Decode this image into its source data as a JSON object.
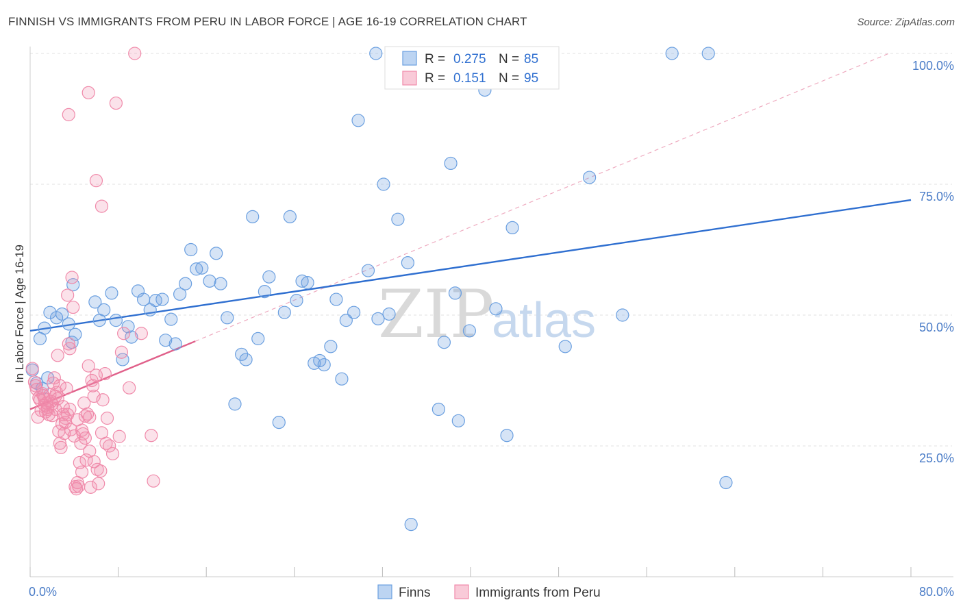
{
  "title": "FINNISH VS IMMIGRANTS FROM PERU IN LABOR FORCE | AGE 16-19 CORRELATION CHART",
  "source": "Source: ZipAtlas.com",
  "watermark": {
    "zip": "ZIP",
    "atlas": "atlas"
  },
  "colors": {
    "finns": "#6a9fe0",
    "finns_line": "#2f6fd0",
    "peru": "#f08aaa",
    "peru_line": "#e0608a",
    "accent_text": "#4a7cc7"
  },
  "legend_top": [
    {
      "r_label": "R =",
      "r_value": "0.275",
      "n_label": "N =",
      "n_value": "85"
    },
    {
      "r_label": "R =",
      "r_value": "0.151",
      "n_label": "N =",
      "n_value": "95"
    }
  ],
  "legend_bottom": [
    "Finns",
    "Immigrants from Peru"
  ],
  "chart_data": {
    "type": "scatter",
    "xlabel": "",
    "ylabel": "In Labor Force | Age 16-19",
    "xlim": [
      0,
      80
    ],
    "ylim": [
      0,
      100
    ],
    "x_tick_labels": [
      "0.0%",
      "80.0%"
    ],
    "y_ticks": [
      25,
      50,
      75,
      100
    ],
    "y_tick_labels": [
      "25.0%",
      "50.0%",
      "75.0%",
      "100.0%"
    ],
    "grid": true,
    "legend_placement": "top-center",
    "series": [
      {
        "name": "Finns",
        "R": 0.275,
        "N": 85,
        "trend": {
          "x0": 0,
          "y0": 47.0,
          "x1": 80,
          "y1": 72.0
        },
        "points": [
          [
            0.2,
            39.5
          ],
          [
            0.9,
            45.5
          ],
          [
            1.3,
            47.5
          ],
          [
            1.8,
            50.5
          ],
          [
            2.4,
            49.5
          ],
          [
            2.9,
            50.2
          ],
          [
            3.5,
            48.3
          ],
          [
            3.8,
            44.8
          ],
          [
            4.1,
            46.3
          ],
          [
            3.9,
            55.8
          ],
          [
            5.9,
            52.5
          ],
          [
            6.3,
            49.0
          ],
          [
            6.7,
            51.0
          ],
          [
            7.4,
            54.2
          ],
          [
            7.8,
            49.0
          ],
          [
            8.4,
            41.5
          ],
          [
            8.9,
            47.8
          ],
          [
            9.2,
            45.8
          ],
          [
            9.8,
            54.6
          ],
          [
            10.3,
            53.0
          ],
          [
            10.9,
            51.0
          ],
          [
            11.4,
            52.8
          ],
          [
            12.0,
            53.0
          ],
          [
            12.3,
            45.2
          ],
          [
            12.8,
            49.2
          ],
          [
            13.2,
            44.5
          ],
          [
            13.6,
            54.0
          ],
          [
            14.1,
            56.0
          ],
          [
            14.6,
            62.5
          ],
          [
            15.1,
            58.8
          ],
          [
            15.6,
            59.0
          ],
          [
            16.3,
            56.5
          ],
          [
            16.9,
            61.8
          ],
          [
            17.3,
            56.0
          ],
          [
            17.9,
            49.5
          ],
          [
            18.6,
            33.0
          ],
          [
            19.2,
            42.5
          ],
          [
            19.6,
            41.5
          ],
          [
            20.2,
            68.8
          ],
          [
            20.7,
            45.5
          ],
          [
            21.3,
            54.5
          ],
          [
            21.7,
            57.3
          ],
          [
            22.6,
            29.5
          ],
          [
            23.1,
            50.5
          ],
          [
            23.6,
            68.8
          ],
          [
            24.2,
            52.8
          ],
          [
            24.7,
            56.5
          ],
          [
            25.2,
            56.2
          ],
          [
            25.8,
            40.8
          ],
          [
            26.3,
            41.3
          ],
          [
            26.7,
            40.5
          ],
          [
            27.3,
            44.0
          ],
          [
            27.8,
            53.0
          ],
          [
            28.3,
            37.8
          ],
          [
            28.7,
            49.0
          ],
          [
            29.4,
            50.5
          ],
          [
            29.8,
            87.2
          ],
          [
            30.7,
            58.5
          ],
          [
            31.6,
            49.3
          ],
          [
            31.4,
            100.0
          ],
          [
            32.1,
            75.0
          ],
          [
            32.6,
            50.2
          ],
          [
            33.4,
            68.3
          ],
          [
            34.3,
            60.0
          ],
          [
            34.6,
            10.0
          ],
          [
            35.5,
            100.0
          ],
          [
            37.1,
            32.0
          ],
          [
            37.6,
            44.8
          ],
          [
            38.2,
            79.0
          ],
          [
            38.6,
            54.2
          ],
          [
            38.9,
            29.8
          ],
          [
            39.9,
            47.0
          ],
          [
            41.3,
            93.0
          ],
          [
            42.3,
            51.2
          ],
          [
            43.3,
            27.0
          ],
          [
            43.8,
            66.7
          ],
          [
            48.6,
            44.0
          ],
          [
            50.8,
            76.3
          ],
          [
            53.8,
            50.0
          ],
          [
            58.3,
            100.0
          ],
          [
            61.6,
            100.0
          ],
          [
            63.2,
            18.0
          ],
          [
            0.6,
            37.0
          ],
          [
            1.1,
            36.0
          ],
          [
            1.6,
            38.0
          ]
        ]
      },
      {
        "name": "Immigrants from Peru",
        "R": 0.151,
        "N": 95,
        "trend": {
          "x0": 0,
          "y0": 32.0,
          "x1": 15,
          "y1": 45.0
        },
        "trend_dashed": {
          "x0": 15,
          "y0": 45.0,
          "x1": 78,
          "y1": 100.0
        },
        "points": [
          [
            0.2,
            39.8
          ],
          [
            0.4,
            37.2
          ],
          [
            0.5,
            36.5
          ],
          [
            0.6,
            35.8
          ],
          [
            0.7,
            30.5
          ],
          [
            0.8,
            34.2
          ],
          [
            0.9,
            33.8
          ],
          [
            1.0,
            31.8
          ],
          [
            1.1,
            35.0
          ],
          [
            1.2,
            34.6
          ],
          [
            1.3,
            32.8
          ],
          [
            1.4,
            31.5
          ],
          [
            1.5,
            33.2
          ],
          [
            1.6,
            32.4
          ],
          [
            1.7,
            31.0
          ],
          [
            1.8,
            34.8
          ],
          [
            1.9,
            33.5
          ],
          [
            2.0,
            30.8
          ],
          [
            2.1,
            37.0
          ],
          [
            2.2,
            38.0
          ],
          [
            2.3,
            34.5
          ],
          [
            2.4,
            35.2
          ],
          [
            2.5,
            42.3
          ],
          [
            2.6,
            27.8
          ],
          [
            2.7,
            25.5
          ],
          [
            2.8,
            24.7
          ],
          [
            2.9,
            29.2
          ],
          [
            3.0,
            31.0
          ],
          [
            3.1,
            27.4
          ],
          [
            3.2,
            30.3
          ],
          [
            3.3,
            36.0
          ],
          [
            3.4,
            53.8
          ],
          [
            3.5,
            44.5
          ],
          [
            3.6,
            43.6
          ],
          [
            3.7,
            28.1
          ],
          [
            3.8,
            57.2
          ],
          [
            3.9,
            51.5
          ],
          [
            4.0,
            26.9
          ],
          [
            4.1,
            17.2
          ],
          [
            4.2,
            16.8
          ],
          [
            4.3,
            18.0
          ],
          [
            4.4,
            17.3
          ],
          [
            4.5,
            21.8
          ],
          [
            4.6,
            25.5
          ],
          [
            4.7,
            20.0
          ],
          [
            4.8,
            27.3
          ],
          [
            4.9,
            33.2
          ],
          [
            5.0,
            30.7
          ],
          [
            5.1,
            22.3
          ],
          [
            5.2,
            31.1
          ],
          [
            5.3,
            40.3
          ],
          [
            5.4,
            30.5
          ],
          [
            5.5,
            17.1
          ],
          [
            5.6,
            37.5
          ],
          [
            5.7,
            36.5
          ],
          [
            5.8,
            34.5
          ],
          [
            6.0,
            38.5
          ],
          [
            6.2,
            17.8
          ],
          [
            6.4,
            20.2
          ],
          [
            6.6,
            33.8
          ],
          [
            6.8,
            38.8
          ],
          [
            7.0,
            30.3
          ],
          [
            7.2,
            25.0
          ],
          [
            7.5,
            23.5
          ],
          [
            7.8,
            90.5
          ],
          [
            8.1,
            26.8
          ],
          [
            8.3,
            42.9
          ],
          [
            8.5,
            46.5
          ],
          [
            9.0,
            36.1
          ],
          [
            9.5,
            100.0
          ],
          [
            10.1,
            46.5
          ],
          [
            11.0,
            27.0
          ],
          [
            11.2,
            18.3
          ],
          [
            5.3,
            92.5
          ],
          [
            3.5,
            88.3
          ],
          [
            6.0,
            75.7
          ],
          [
            6.5,
            70.8
          ],
          [
            1.3,
            34.0
          ],
          [
            1.6,
            32.0
          ],
          [
            2.0,
            33.0
          ],
          [
            2.3,
            32.0
          ],
          [
            2.5,
            34.0
          ],
          [
            2.7,
            36.5
          ],
          [
            3.0,
            32.5
          ],
          [
            3.2,
            29.5
          ],
          [
            3.4,
            31.0
          ],
          [
            3.6,
            32.0
          ],
          [
            4.3,
            30.0
          ],
          [
            4.7,
            28.0
          ],
          [
            5.0,
            26.5
          ],
          [
            5.4,
            24.0
          ],
          [
            5.8,
            22.0
          ],
          [
            6.1,
            20.5
          ],
          [
            6.5,
            27.5
          ],
          [
            6.9,
            25.5
          ]
        ]
      }
    ]
  }
}
